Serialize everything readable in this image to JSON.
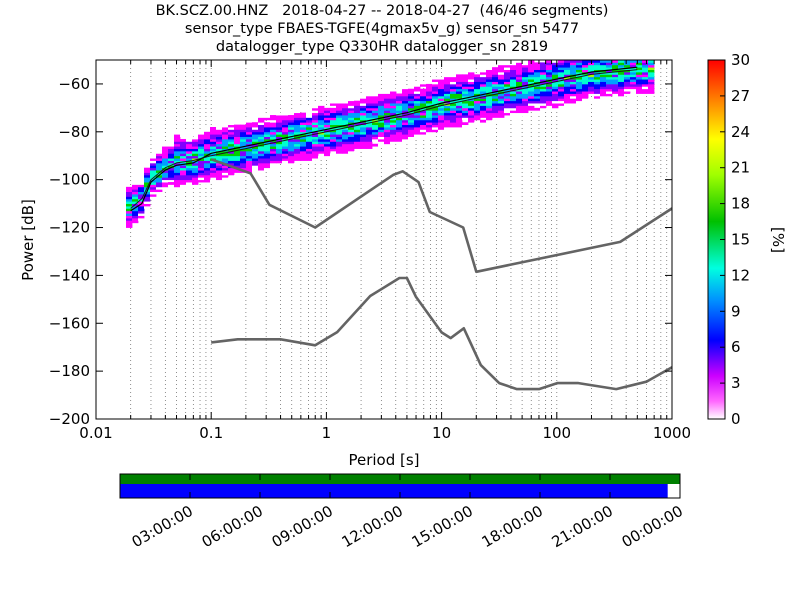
{
  "title": {
    "line1": "BK.SCZ.00.HNZ   2018-04-27 -- 2018-04-27  (46/46 segments)",
    "line2": "sensor_type FBAES-TGFE(4gmax5v_g) sensor_sn 5477",
    "line3": "datalogger_type Q330HR datalogger_sn 2819"
  },
  "chart_data": [
    {
      "type": "heatmap",
      "xlabel": "Period [s]",
      "ylabel": "Power [dB]",
      "x_scale": "log",
      "xlim": [
        0.01,
        1000
      ],
      "ylim": [
        -200,
        -50
      ],
      "x_ticks": [
        0.01,
        0.1,
        1,
        10,
        100,
        1000
      ],
      "x_tick_labels": [
        "0.01",
        "0.1",
        "1",
        "10",
        "100",
        "1000"
      ],
      "y_ticks": [
        -200,
        -180,
        -160,
        -140,
        -120,
        -100,
        -80,
        -60
      ],
      "y_tick_labels": [
        "−200",
        "−180",
        "−160",
        "−140",
        "−120",
        "−100",
        "−80",
        "−60"
      ],
      "grid": "dotted vertical at minor log ticks",
      "colorbar": {
        "label": "[%]",
        "min": 0,
        "max": 30,
        "ticks": [
          0,
          3,
          6,
          9,
          12,
          15,
          18,
          21,
          24,
          27,
          30
        ],
        "stops": [
          "#ffffff",
          "#ff00ff",
          "#7f00ff",
          "#0000ff",
          "#00a0ff",
          "#00ffd0",
          "#00d000",
          "#a0ff00",
          "#ffff00",
          "#ff8000",
          "#ff0000"
        ]
      },
      "ppsd_mode": {
        "x": [
          0.02,
          0.025,
          0.03,
          0.04,
          0.05,
          0.07,
          0.1,
          0.2,
          0.5,
          1,
          2,
          5,
          10,
          20,
          50,
          100,
          200,
          500
        ],
        "y": [
          -112,
          -108,
          -100,
          -95,
          -93,
          -92,
          -90,
          -87,
          -83,
          -80,
          -77,
          -73,
          -69,
          -66,
          -62,
          -59,
          -56,
          -54
        ]
      },
      "ppsd_mean": {
        "x": [
          0.02,
          0.025,
          0.03,
          0.04,
          0.05,
          0.07,
          0.1,
          0.2,
          0.5,
          1,
          2,
          5,
          10,
          20,
          50,
          100,
          200,
          500
        ],
        "y": [
          -113,
          -110,
          -101,
          -96,
          -94,
          -93,
          -89,
          -86,
          -82,
          -79,
          -76,
          -72,
          -68,
          -65,
          -61,
          -58,
          -55,
          -53
        ]
      },
      "noise_models": {
        "nhnm": {
          "x": [
            0.1,
            0.22,
            0.32,
            0.8,
            3.8,
            4.6,
            6.3,
            7.9,
            15.4,
            20,
            354.8,
            1000
          ],
          "y": [
            -91.5,
            -97.4,
            -110.5,
            -120,
            -98,
            -96.5,
            -101,
            -113.5,
            -120,
            -138.5,
            -126,
            -112
          ]
        },
        "nlnm": {
          "x": [
            0.1,
            0.17,
            0.4,
            0.8,
            1.24,
            2.4,
            4.3,
            5,
            6,
            10,
            12,
            15.6,
            21.9,
            31.6,
            45,
            70,
            101,
            154,
            328,
            600,
            1000
          ],
          "y": [
            -168,
            -166.7,
            -166.7,
            -169.2,
            -163.7,
            -148.6,
            -141.1,
            -141.1,
            -149,
            -163.8,
            -166.2,
            -162.1,
            -177.5,
            -185,
            -187.5,
            -187.5,
            -185,
            -185,
            -187.5,
            -184.4,
            -178.4
          ]
        }
      }
    },
    {
      "type": "timeline",
      "tick_labels": [
        "03:00:00",
        "06:00:00",
        "09:00:00",
        "12:00:00",
        "15:00:00",
        "18:00:00",
        "21:00:00",
        "00:00:00"
      ],
      "data_coverage_fraction": 1.0,
      "psd_coverage_fraction": 0.978,
      "colors": {
        "data": "#008000",
        "psd": "#0000ff"
      }
    }
  ]
}
